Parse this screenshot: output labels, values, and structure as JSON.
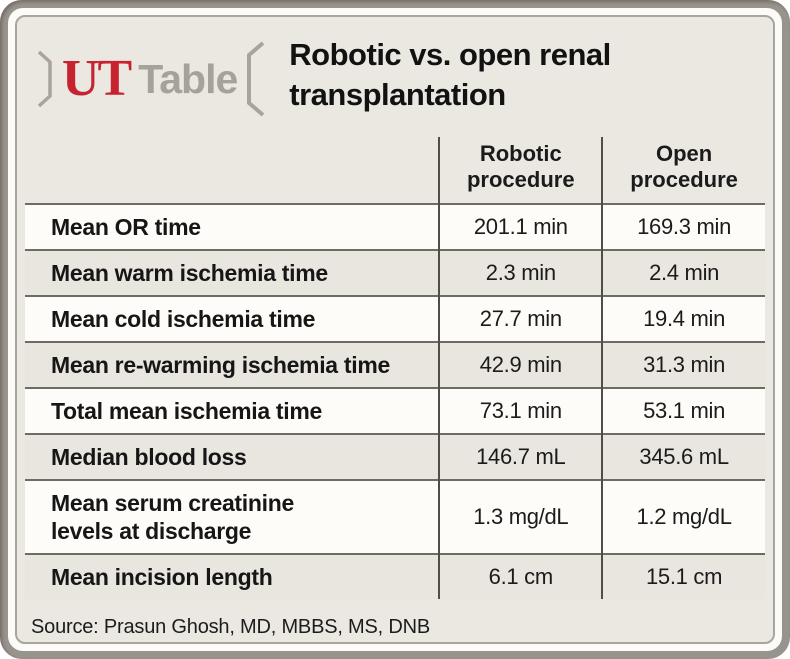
{
  "brand": {
    "ut": "UT",
    "wordmark": "Table"
  },
  "title": "Robotic vs. open renal\ntransplantation",
  "table": {
    "header": {
      "robotic": "Robotic\nprocedure",
      "open": "Open\nprocedure"
    },
    "rows": [
      {
        "label": "Mean OR time",
        "robotic": "201.1 min",
        "open": "169.3 min"
      },
      {
        "label": "Mean warm ischemia time",
        "robotic": "2.3 min",
        "open": "2.4 min"
      },
      {
        "label": "Mean cold ischemia time",
        "robotic": "27.7 min",
        "open": "19.4 min"
      },
      {
        "label": "Mean re-warming ischemia time",
        "robotic": "42.9 min",
        "open": "31.3 min"
      },
      {
        "label": "Total mean ischemia time",
        "robotic": "73.1 min",
        "open": "53.1 min"
      },
      {
        "label": "Median blood loss",
        "robotic": "146.7 mL",
        "open": "345.6 mL"
      },
      {
        "label": "Mean serum creatinine\nlevels at discharge",
        "robotic": "1.3 mg/dL",
        "open": "1.2 mg/dL"
      },
      {
        "label": "Mean incision length",
        "robotic": "6.1 cm",
        "open": "15.1 cm"
      }
    ]
  },
  "source": "Source: Prasun Ghosh, MD, MBBS, MS, DNB",
  "colors": {
    "brand_red": "#c62230",
    "brand_gray": "#a6a29b",
    "background_beige": "#ebe8e2",
    "row_white": "#fdfcf9",
    "row_shade": "#e9e6df",
    "horizontal_line": "#6e6a64",
    "vertical_line": "#514d47",
    "frame_gray": "#97938d",
    "text": "#121212"
  },
  "chart_data": {
    "type": "table",
    "title": "Robotic vs. open renal transplantation",
    "columns": [
      "",
      "Robotic procedure",
      "Open procedure"
    ],
    "rows": [
      [
        "Mean OR time",
        "201.1 min",
        "169.3 min"
      ],
      [
        "Mean warm ischemia time",
        "2.3 min",
        "2.4 min"
      ],
      [
        "Mean cold ischemia time",
        "27.7 min",
        "19.4 min"
      ],
      [
        "Mean re-warming ischemia time",
        "42.9 min",
        "31.3 min"
      ],
      [
        "Total mean ischemia time",
        "73.1 min",
        "53.1 min"
      ],
      [
        "Median blood loss",
        "146.7 mL",
        "345.6 mL"
      ],
      [
        "Mean serum creatinine levels at discharge",
        "1.3 mg/dL",
        "1.2 mg/dL"
      ],
      [
        "Mean incision length",
        "6.1 cm",
        "15.1 cm"
      ]
    ],
    "series": [
      {
        "name": "Robotic procedure",
        "values": [
          201.1,
          2.3,
          27.7,
          42.9,
          73.1,
          146.7,
          1.3,
          6.1
        ]
      },
      {
        "name": "Open procedure",
        "values": [
          169.3,
          2.4,
          19.4,
          31.3,
          53.1,
          345.6,
          1.2,
          15.1
        ]
      }
    ],
    "units": [
      "min",
      "min",
      "min",
      "min",
      "min",
      "mL",
      "mg/dL",
      "cm"
    ],
    "source": "Source: Prasun Ghosh, MD, MBBS, MS, DNB"
  }
}
